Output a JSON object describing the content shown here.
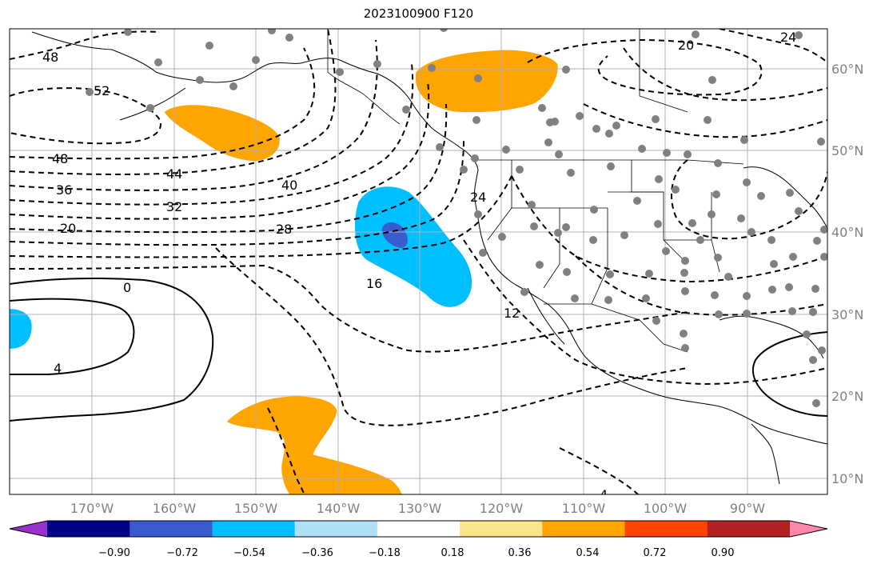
{
  "title": "2023100900 F120",
  "latitude_labels": [
    "60°N",
    "50°N",
    "40°N",
    "30°N",
    "20°N",
    "10°N"
  ],
  "longitude_labels": [
    "170°W",
    "160°W",
    "150°W",
    "140°W",
    "130°W",
    "120°W",
    "110°W",
    "100°W",
    "90°W"
  ],
  "contour_labels": [
    "48",
    "52",
    "48",
    "44",
    "36",
    "32",
    "20",
    "40",
    "28",
    "16",
    "0",
    "4",
    "12",
    "24",
    "20",
    "24",
    "4"
  ],
  "colorbar": {
    "colors": [
      "#9b30d0",
      "#00008b",
      "#3a5bd0",
      "#00bfff",
      "#aee0f8",
      "#ffffff",
      "#fbe58a",
      "#ffa500",
      "#ff4500",
      "#b22222",
      "#ff88aa"
    ],
    "tick_labels": [
      "−0.90",
      "−0.72",
      "−0.54",
      "−0.36",
      "−0.18",
      "0.18",
      "0.36",
      "0.54",
      "0.72",
      "0.90"
    ]
  },
  "colors": {
    "orange_region": "#ffa500",
    "cyan_region": "#00bfff",
    "blue_core": "#3a5bd0",
    "station_dot": "#808080",
    "grid": "#b0b0b0"
  }
}
